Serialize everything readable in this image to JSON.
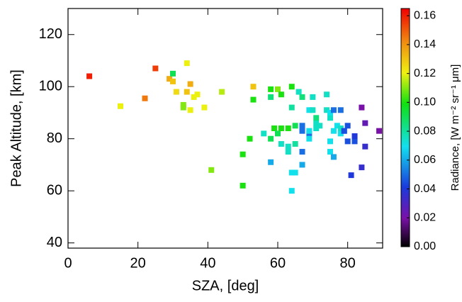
{
  "chart_data": {
    "type": "scatter",
    "x_label": "SZA, [deg]",
    "y_label": "Peak Altitude, [km]",
    "colorbar_label": "Radiance, [W m⁻² sr⁻¹ μm]",
    "colormap": "rainbow",
    "marker": "square",
    "xlim": [
      0,
      90
    ],
    "xticks": [
      0,
      20,
      40,
      60,
      80
    ],
    "ylim": [
      38,
      130
    ],
    "yticks": [
      40,
      60,
      80,
      100,
      120
    ],
    "clim": [
      0,
      0.165
    ],
    "cticks": [
      {
        "value": 0,
        "label": "0.00"
      },
      {
        "value": 0.02,
        "label": "0.02"
      },
      {
        "value": 0.04,
        "label": "0.04"
      },
      {
        "value": 0.06,
        "label": "0.06"
      },
      {
        "value": 0.08,
        "label": "0.08"
      },
      {
        "value": 0.1,
        "label": "0.10"
      },
      {
        "value": 0.12,
        "label": "0.12"
      },
      {
        "value": 0.14,
        "label": "0.14"
      },
      {
        "value": 0.16,
        "label": "0.16"
      }
    ],
    "x": [
      6.1,
      15,
      22,
      25,
      29,
      30,
      30,
      31,
      34,
      34,
      35,
      36,
      37,
      33,
      33,
      35,
      39,
      44,
      41,
      50,
      50,
      52,
      53,
      53,
      56,
      58,
      58,
      58,
      58,
      59,
      60,
      61,
      60,
      61,
      61,
      63,
      63,
      63,
      64,
      64,
      65,
      65,
      64,
      65,
      64,
      66,
      67,
      67,
      67,
      67,
      67,
      69,
      69,
      69,
      69,
      70,
      70,
      71,
      71,
      71,
      72,
      74,
      74,
      75,
      75,
      75,
      75,
      76,
      76,
      76,
      77,
      78,
      78,
      78,
      79,
      79,
      80,
      80,
      81,
      82,
      82,
      84,
      84,
      85,
      85,
      89
    ],
    "values": [
      104,
      92.5,
      95.5,
      107,
      103,
      105,
      102,
      98,
      109,
      98,
      101,
      96,
      97,
      93,
      92,
      91,
      92,
      98,
      68,
      62,
      74,
      80,
      100,
      95,
      82,
      99,
      96,
      80,
      71,
      84,
      99,
      97,
      82,
      84,
      78,
      77,
      84,
      75,
      100,
      92,
      78,
      85,
      67,
      67,
      60,
      98,
      96,
      85,
      83,
      75,
      70,
      91,
      82,
      83,
      80,
      96,
      91,
      86,
      88,
      84,
      85,
      97,
      91,
      88,
      90,
      79,
      75,
      83,
      73,
      91,
      85,
      82,
      84,
      91,
      83,
      83,
      85,
      79,
      66,
      79,
      81,
      69,
      92,
      77,
      86,
      83
    ],
    "color_values": [
      0.16,
      0.12,
      0.145,
      0.155,
      0.135,
      0.09,
      0.13,
      0.125,
      0.12,
      0.13,
      0.135,
      0.12,
      0.12,
      0.11,
      0.11,
      0.12,
      0.12,
      0.115,
      0.11,
      0.1,
      0.1,
      0.1,
      0.13,
      0.1,
      0.075,
      0.1,
      0.085,
      0.09,
      0.06,
      0.1,
      0.11,
      0.1,
      0.09,
      0.1,
      0.075,
      0.075,
      0.1,
      0.075,
      0.1,
      0.08,
      0.08,
      0.09,
      0.07,
      0.07,
      0.07,
      0.075,
      0.085,
      0.05,
      0.05,
      0.05,
      0.06,
      0.07,
      0.05,
      0.07,
      0.07,
      0.075,
      0.075,
      0.075,
      0.085,
      0.075,
      0.075,
      0.075,
      0.075,
      0.075,
      0.07,
      0.07,
      0.07,
      0.07,
      0.06,
      0.05,
      0.07,
      0.07,
      0.075,
      0.05,
      0.05,
      0.045,
      0.045,
      0.045,
      0.04,
      0.045,
      0.04,
      0.035,
      0.02,
      0.035,
      0.025,
      0.02
    ]
  }
}
